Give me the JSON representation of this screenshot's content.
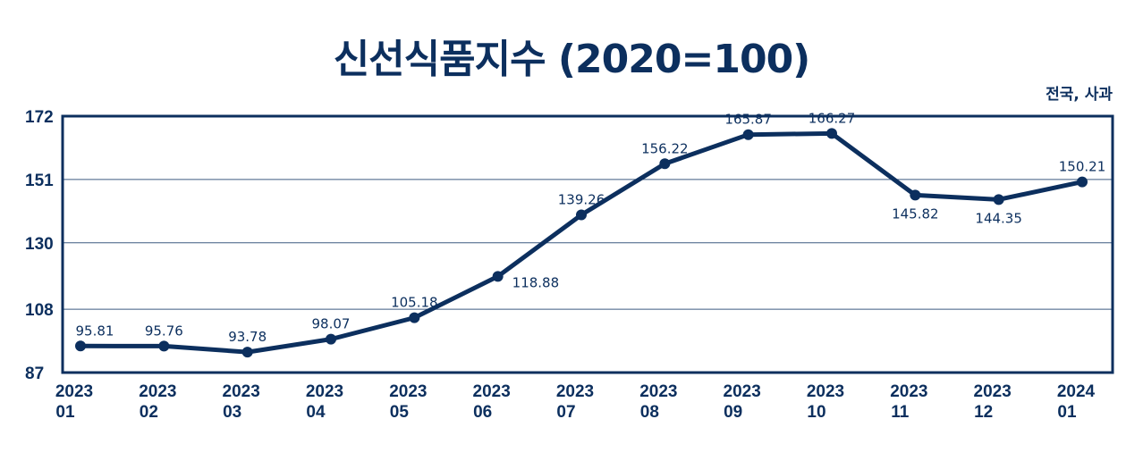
{
  "chart_data": {
    "type": "line",
    "title": "신선식품지수 (2020=100)",
    "subtitle": "전국, 사과",
    "categories": [
      [
        "2023",
        "01"
      ],
      [
        "2023",
        "02"
      ],
      [
        "2023",
        "03"
      ],
      [
        "2023",
        "04"
      ],
      [
        "2023",
        "05"
      ],
      [
        "2023",
        "06"
      ],
      [
        "2023",
        "07"
      ],
      [
        "2023",
        "08"
      ],
      [
        "2023",
        "09"
      ],
      [
        "2023",
        "10"
      ],
      [
        "2023",
        "11"
      ],
      [
        "2023",
        "12"
      ],
      [
        "2024",
        "01"
      ]
    ],
    "values": [
      95.81,
      95.76,
      93.78,
      98.07,
      105.18,
      118.88,
      139.26,
      156.22,
      165.87,
      166.27,
      145.82,
      144.35,
      150.21
    ],
    "value_labels": [
      "95.81",
      "95.76",
      "93.78",
      "98.07",
      "105.18",
      "118.88",
      "139.26",
      "156.22",
      "165.87",
      "166.27",
      "145.82",
      "144.35",
      "150.21"
    ],
    "label_positions": [
      "above",
      "above",
      "above",
      "above",
      "above",
      "right",
      "above",
      "above",
      "above",
      "above",
      "below",
      "below",
      "above"
    ],
    "yticks": [
      "87",
      "108",
      "130",
      "151",
      "172"
    ],
    "ylim": [
      87,
      172
    ],
    "grid": true,
    "colors": {
      "line": "#0c2f5e",
      "grid": "#3d5a80",
      "text": "#0c2f5e"
    }
  }
}
